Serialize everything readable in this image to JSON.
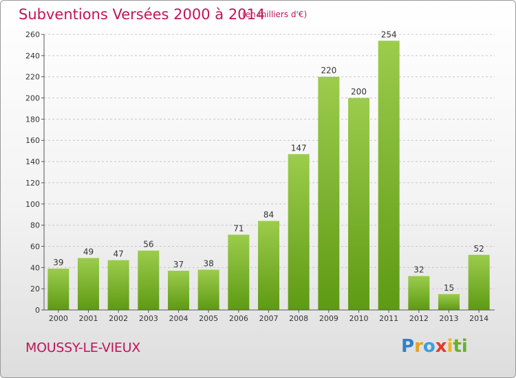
{
  "title": "Subventions Versées 2000 à 2014",
  "subtitle": "(en milliers d'€)",
  "commune": "MOUSSY-LE-VIEUX",
  "logo": "Proxiti",
  "colors": {
    "title": "#c0145a",
    "bar_top": "#9ccc4c",
    "bar_bottom": "#5e9a14",
    "grid": "#c8c8c8"
  },
  "chart_data": {
    "type": "bar",
    "title": "Subventions Versées 2000 à 2014",
    "subtitle": "(en milliers d'€)",
    "xlabel": "",
    "ylabel": "",
    "ylim": [
      0,
      260
    ],
    "yticks": [
      0,
      20,
      40,
      60,
      80,
      100,
      120,
      140,
      160,
      180,
      200,
      220,
      240,
      260
    ],
    "grid": true,
    "categories": [
      "2000",
      "2001",
      "2002",
      "2003",
      "2004",
      "2005",
      "2006",
      "2007",
      "2008",
      "2009",
      "2010",
      "2011",
      "2012",
      "2013",
      "2014"
    ],
    "values": [
      39,
      49,
      47,
      56,
      37,
      38,
      71,
      84,
      147,
      220,
      200,
      254,
      32,
      15,
      52
    ],
    "data_labels": [
      "39",
      "49",
      "47",
      "56",
      "37",
      "38",
      "71",
      "84",
      "147",
      "220",
      "200",
      "254",
      "32",
      "15",
      "52"
    ]
  }
}
